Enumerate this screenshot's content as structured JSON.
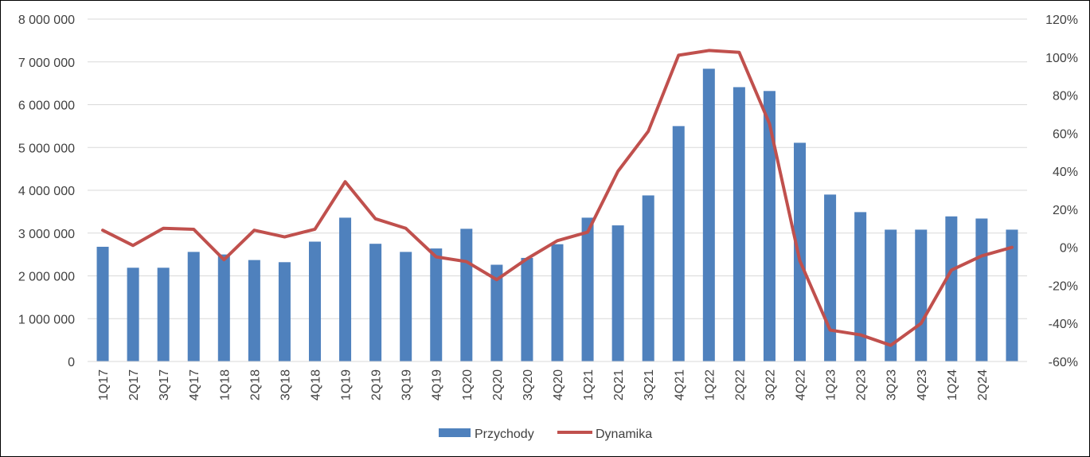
{
  "chart_data": {
    "type": "bar+line",
    "title": "",
    "xlabel": "",
    "ylabel": "",
    "categories": [
      "1Q17",
      "2Q17",
      "3Q17",
      "4Q17",
      "1Q18",
      "2Q18",
      "3Q18",
      "4Q18",
      "1Q19",
      "2Q19",
      "3Q19",
      "4Q19",
      "1Q20",
      "2Q20",
      "3Q20",
      "4Q20",
      "1Q21",
      "2Q21",
      "3Q21",
      "4Q21",
      "1Q22",
      "2Q22",
      "3Q22",
      "4Q22",
      "1Q23",
      "2Q23",
      "3Q23",
      "4Q23",
      "1Q24",
      "2Q24",
      ""
    ],
    "series": [
      {
        "name": "Przychody",
        "type": "bar",
        "axis": "left",
        "color": "#4F81BD",
        "values": [
          2680000,
          2190000,
          2190000,
          2560000,
          2500000,
          2370000,
          2320000,
          2800000,
          3360000,
          2750000,
          2560000,
          2640000,
          3100000,
          2260000,
          2420000,
          2740000,
          3360000,
          3180000,
          3880000,
          5500000,
          6840000,
          6410000,
          6320000,
          5110000,
          3900000,
          3490000,
          3080000,
          3080000,
          3390000,
          3340000,
          3080000
        ]
      },
      {
        "name": "Dynamika",
        "type": "line",
        "axis": "right",
        "color": "#C0504D",
        "values": [
          0.09,
          0.01,
          0.1,
          0.095,
          -0.065,
          0.09,
          0.055,
          0.095,
          0.345,
          0.15,
          0.1,
          -0.05,
          -0.075,
          -0.17,
          -0.06,
          0.035,
          0.08,
          0.4,
          0.61,
          1.01,
          1.035,
          1.025,
          0.65,
          -0.07,
          -0.435,
          -0.46,
          -0.515,
          -0.4,
          -0.12,
          -0.045,
          0.0
        ]
      }
    ],
    "y_left": {
      "ylim": [
        0,
        8000000
      ],
      "ticks": [
        0,
        1000000,
        2000000,
        3000000,
        4000000,
        5000000,
        6000000,
        7000000,
        8000000
      ],
      "tick_labels": [
        "0",
        "1 000 000",
        "2 000 000",
        "3 000 000",
        "4 000 000",
        "5 000 000",
        "6 000 000",
        "7 000 000",
        "8 000 000"
      ]
    },
    "y_right": {
      "ylim": [
        -0.6,
        1.2
      ],
      "ticks": [
        -0.6,
        -0.4,
        -0.2,
        0,
        0.2,
        0.4,
        0.6,
        0.8,
        1.0,
        1.2
      ],
      "tick_labels": [
        "-60%",
        "-40%",
        "-20%",
        "0%",
        "20%",
        "40%",
        "60%",
        "80%",
        "100%",
        "120%"
      ]
    },
    "grid": true,
    "legend": {
      "position": "bottom",
      "entries": [
        "Przychody",
        "Dynamika"
      ]
    }
  }
}
